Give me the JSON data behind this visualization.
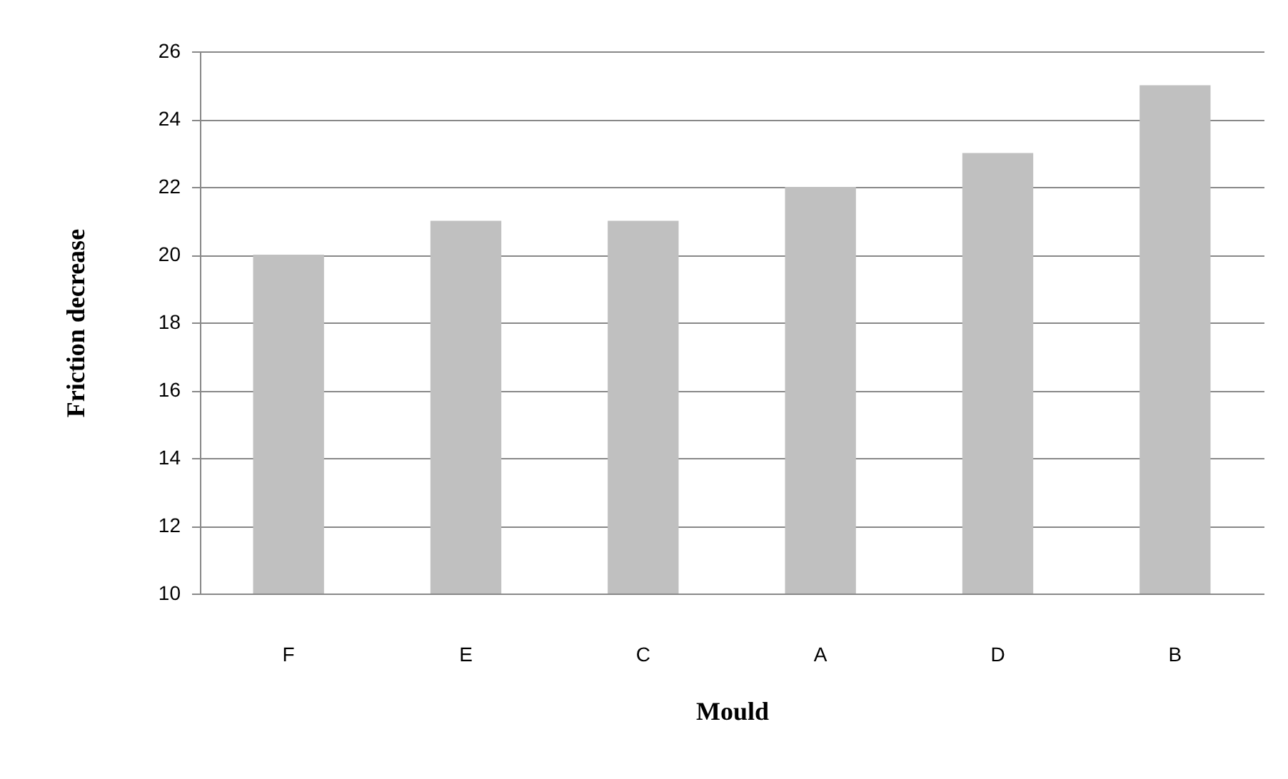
{
  "chart_data": {
    "type": "bar",
    "xlabel": "Mould",
    "ylabel": "Friction decrease",
    "categories": [
      "F",
      "E",
      "C",
      "A",
      "D",
      "B"
    ],
    "values": [
      20,
      21,
      21,
      22,
      23,
      25
    ],
    "color": "#c0c0c0",
    "ylim": [
      10,
      26
    ],
    "yticks": [
      10,
      12,
      14,
      16,
      18,
      20,
      22,
      24,
      26
    ],
    "grid": "y"
  }
}
